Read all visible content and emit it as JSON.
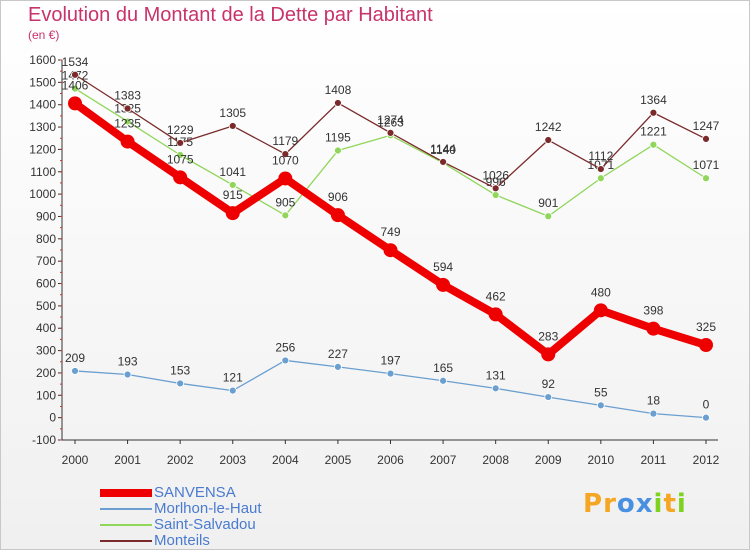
{
  "chart_data": {
    "type": "line",
    "title": "Evolution du Montant de la Dette par Habitant",
    "subtitle": "(en €)",
    "x": [
      "2000",
      "2001",
      "2002",
      "2003",
      "2004",
      "2005",
      "2006",
      "2007",
      "2008",
      "2009",
      "2010",
      "2011",
      "2012"
    ],
    "ylim": [
      -100,
      1600
    ],
    "yticks": [
      -100,
      0,
      100,
      200,
      300,
      400,
      500,
      600,
      700,
      800,
      900,
      1000,
      1100,
      1200,
      1300,
      1400,
      1500,
      1600
    ],
    "grid": false,
    "legend_position": "bottom-left",
    "series": [
      {
        "name": "SANVENSA",
        "color": "#ee0000",
        "values": [
          1406,
          1235,
          1075,
          915,
          1070,
          906,
          749,
          594,
          462,
          283,
          480,
          398,
          325
        ]
      },
      {
        "name": "Morlhon-le-Haut",
        "color": "#6a9fd0",
        "values": [
          209,
          193,
          153,
          121,
          256,
          227,
          197,
          165,
          131,
          92,
          55,
          18,
          0
        ]
      },
      {
        "name": "Saint-Salvadou",
        "color": "#8fd65a",
        "values": [
          1472,
          1325,
          1175,
          1041,
          905,
          1195,
          1263,
          1140,
          996,
          901,
          1071,
          1221,
          1071
        ]
      },
      {
        "name": "Monteils",
        "color": "#7a2a2a",
        "values": [
          1534,
          1383,
          1229,
          1305,
          1179,
          1408,
          1274,
          1144,
          1026,
          1242,
          1112,
          1364,
          1247
        ]
      }
    ]
  },
  "logo": {
    "letters": [
      "P",
      "r",
      "o",
      "x",
      "i",
      "t",
      "i"
    ],
    "colors": [
      "#f5a623",
      "#f5a623",
      "#4a90e2",
      "#4a90e2",
      "#7ed321",
      "#f5a623",
      "#7ed321"
    ]
  }
}
